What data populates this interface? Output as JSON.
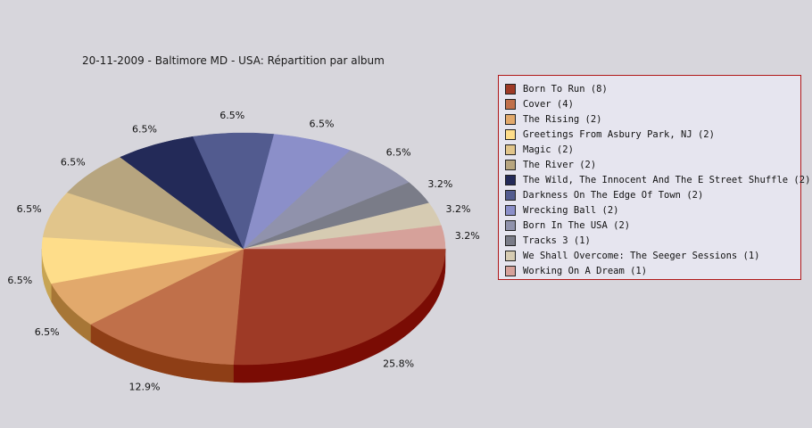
{
  "chart_data": {
    "type": "pie",
    "title": "20-11-2009 - Baltimore MD - USA:  Répartition par album",
    "slices": [
      {
        "label": "Born To Run (8)",
        "value": 8,
        "percent_label": "25.8%",
        "color": "#9e3a26",
        "side_color": "#7a0c04"
      },
      {
        "label": "Cover (4)",
        "value": 4,
        "percent_label": "12.9%",
        "color": "#c0704a",
        "side_color": "#8e3e16"
      },
      {
        "label": "The Rising (2)",
        "value": 2,
        "percent_label": "6.5%",
        "color": "#e2a96c",
        "side_color": "#a77636"
      },
      {
        "label": "Greetings From Asbury Park, NJ (2)",
        "value": 2,
        "percent_label": "6.5%",
        "color": "#fedd8a",
        "side_color": "#c7a453"
      },
      {
        "label": "Magic (2)",
        "value": 2,
        "percent_label": "6.5%",
        "color": "#e1c58b",
        "side_color": "#a98d55"
      },
      {
        "label": "The River (2)",
        "value": 2,
        "percent_label": "6.5%",
        "color": "#b7a57f",
        "side_color": "#847351"
      },
      {
        "label": "The Wild, The Innocent And The E Street Shuffle (2)",
        "value": 2,
        "percent_label": "6.5%",
        "color": "#232a58",
        "side_color": "#131836"
      },
      {
        "label": "Darkness On The Edge Of Town (2)",
        "value": 2,
        "percent_label": "6.5%",
        "color": "#525b8f",
        "side_color": "#343b63"
      },
      {
        "label": "Wrecking Ball (2)",
        "value": 2,
        "percent_label": "6.5%",
        "color": "#8b8fc9",
        "side_color": "#5e6294"
      },
      {
        "label": "Born In The USA (2)",
        "value": 2,
        "percent_label": "6.5%",
        "color": "#9092ac",
        "side_color": "#62647d"
      },
      {
        "label": "Tracks 3 (1)",
        "value": 1,
        "percent_label": "3.2%",
        "color": "#7a7c88",
        "side_color": "#52545e"
      },
      {
        "label": "We Shall Overcome: The Seeger Sessions (1)",
        "value": 1,
        "percent_label": "3.2%",
        "color": "#d6cbb2",
        "side_color": "#a39880"
      },
      {
        "label": "Working On A Dream (1)",
        "value": 1,
        "percent_label": "3.2%",
        "color": "#d6a19a",
        "side_color": "#a06e68"
      }
    ],
    "start_position": "3 o'clock, counter-clockwise from bottom",
    "legend_position": "right"
  }
}
